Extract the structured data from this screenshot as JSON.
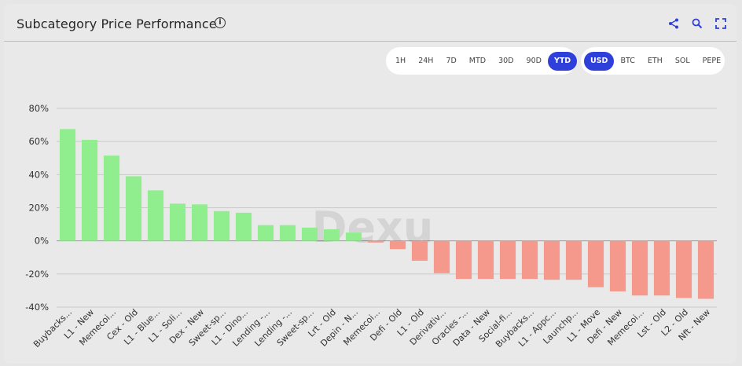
{
  "header": {
    "title": "Subcategory Price Performance"
  },
  "periods": [
    "1H",
    "24H",
    "7D",
    "MTD",
    "30D",
    "90D",
    "YTD"
  ],
  "active_period": "YTD",
  "currencies": [
    "USD",
    "BTC",
    "ETH",
    "SOL",
    "PEPE"
  ],
  "active_currency": "USD",
  "watermark": "Dexu",
  "colors": {
    "positive": "#90ee8f",
    "negative": "#f4998c",
    "accent": "#2f3fd9"
  },
  "chart_data": {
    "type": "bar",
    "title": "",
    "xlabel": "",
    "ylabel": "",
    "ylim": [
      -40,
      80
    ],
    "yticks": [
      80,
      60,
      40,
      20,
      0,
      -20,
      -40
    ],
    "ytick_labels": [
      "80%",
      "60%",
      "40%",
      "20%",
      "0%",
      "-20%",
      "-40%"
    ],
    "grid": true,
    "categories": [
      "Buybacks...",
      "L1 - New",
      "Memecoi...",
      "Cex - Old",
      "L1 - Blue...",
      "L1 - Soli...",
      "Dex - New",
      "Sweet-sp...",
      "L1 - Dino...",
      "Lending -...",
      "Lending -...",
      "Sweet-sp...",
      "Lrt - Old",
      "Depin - N...",
      "Memecoi...",
      "Defi - Old",
      "L1 - Old",
      "Derivativ...",
      "Oracles -...",
      "Data - New",
      "Social-fi...",
      "Buybacks...",
      "L1 - Appc...",
      "Launchp...",
      "L1 - Move",
      "Defi - New",
      "Memecoi...",
      "Lst - Old",
      "L2 - Old",
      "Nft - New"
    ],
    "values": [
      67.5,
      61,
      51.5,
      39,
      30.5,
      22.5,
      22,
      18,
      17,
      9.5,
      9.5,
      8,
      7,
      5,
      -1,
      -5,
      -12,
      -19.5,
      -23,
      -23,
      -23,
      -23,
      -23.5,
      -23.5,
      -28,
      -30.5,
      -33,
      -33,
      -34.5,
      -35
    ]
  }
}
